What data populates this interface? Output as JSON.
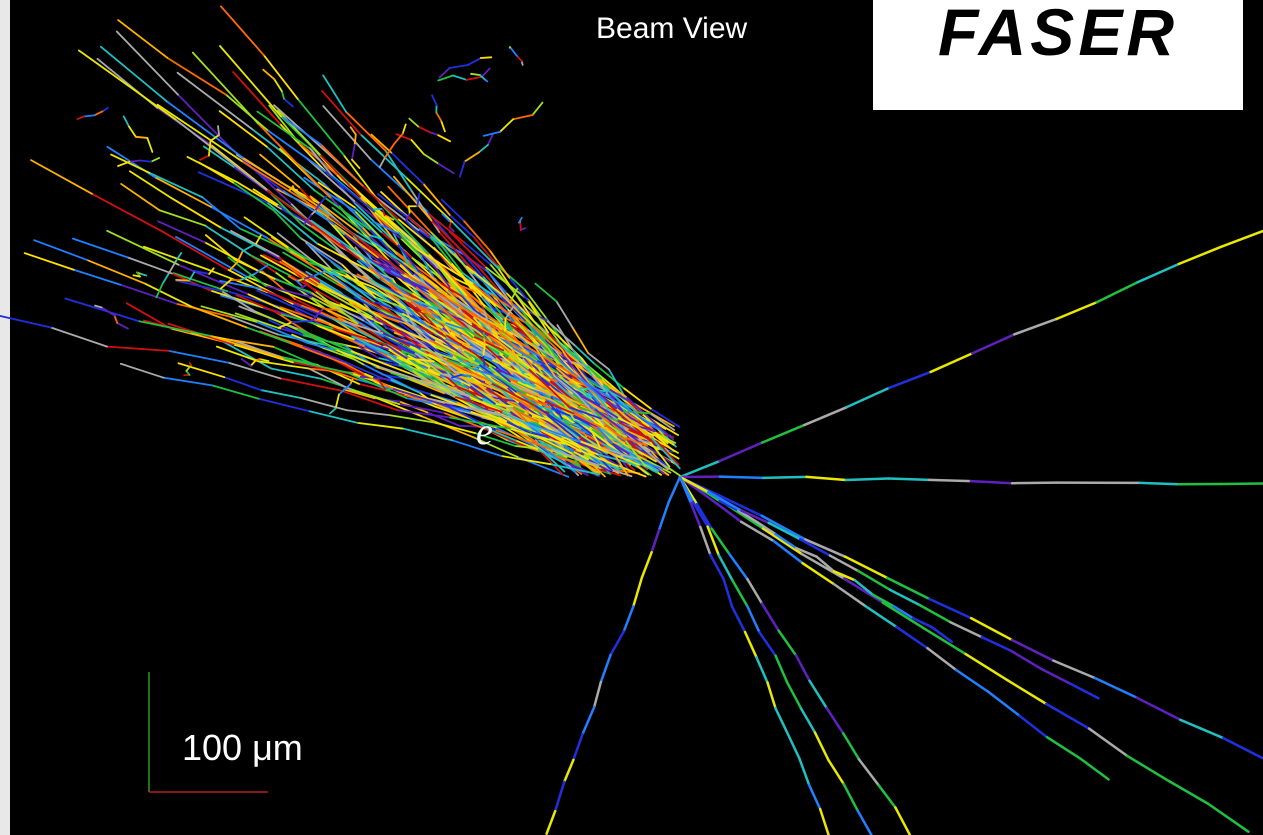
{
  "title": "Beam View",
  "logo": "FASER",
  "particle_label": "e",
  "scale_bar": "100 μm"
}
